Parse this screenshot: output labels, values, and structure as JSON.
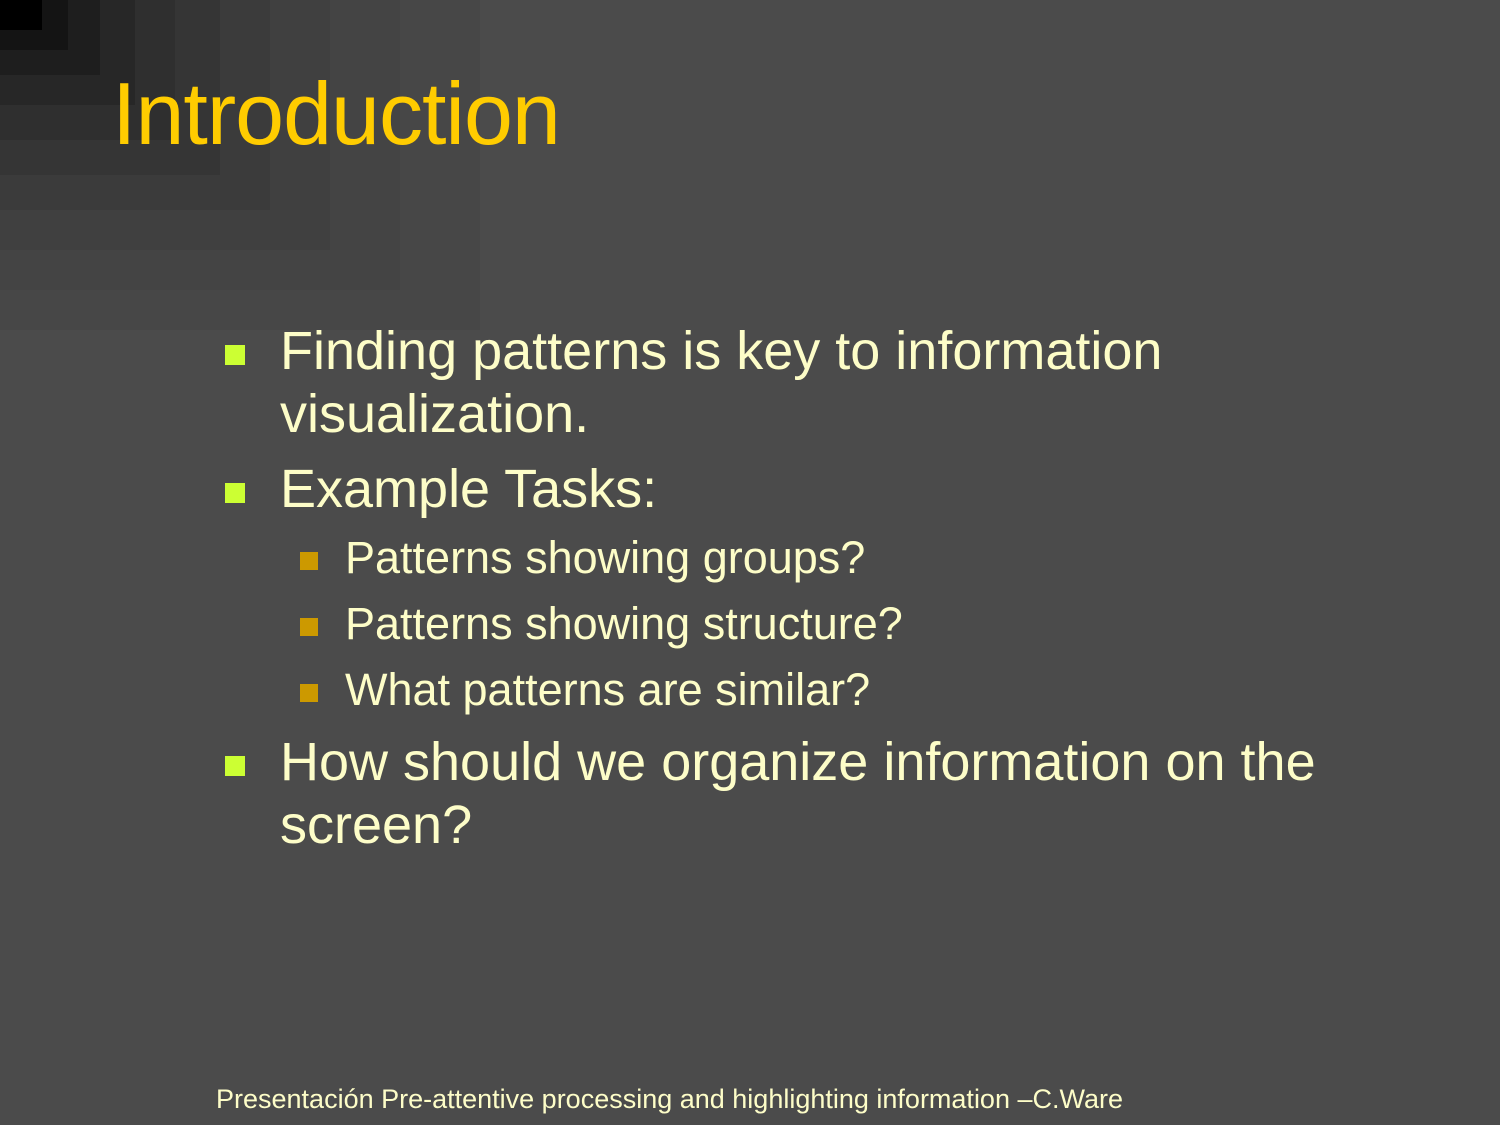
{
  "slide": {
    "title": "Introduction",
    "bullets": [
      {
        "text": "Finding patterns is key to information visualization."
      },
      {
        "text": "Example Tasks:"
      },
      {
        "text": "How should we organize information on the screen?"
      }
    ],
    "sub_bullets": [
      {
        "text": "Patterns showing groups?"
      },
      {
        "text": "Patterns showing structure?"
      },
      {
        "text": "What patterns are similar?"
      }
    ],
    "footer": "Presentación Pre-attentive processing and highlighting information –C.Ware"
  },
  "colors": {
    "background": "#4b4b4b",
    "title": "#ffcc00",
    "text": "#fdfdc8",
    "bullet_marker": "#ccff33",
    "sub_bullet_marker": "#cc9900"
  },
  "icons": {
    "bullet": "square-bullet-icon",
    "sub_bullet": "square-sub-bullet-icon"
  }
}
